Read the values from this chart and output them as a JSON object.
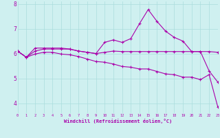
{
  "xlabel": "Windchill (Refroidissement éolien,°C)",
  "background_color": "#cff0f0",
  "line_color": "#aa00aa",
  "grid_color": "#aadddd",
  "x_hours": [
    0,
    1,
    2,
    3,
    4,
    5,
    6,
    7,
    8,
    9,
    10,
    11,
    12,
    13,
    14,
    15,
    16,
    17,
    18,
    19,
    20,
    21,
    22,
    23
  ],
  "series1": [
    6.1,
    5.85,
    6.22,
    6.22,
    6.22,
    6.22,
    6.18,
    6.1,
    6.05,
    6.0,
    6.45,
    6.55,
    6.45,
    6.6,
    7.2,
    7.77,
    7.3,
    6.9,
    6.65,
    6.5,
    6.08,
    6.08,
    5.3,
    4.85
  ],
  "series2": [
    6.1,
    5.85,
    6.1,
    6.18,
    6.18,
    6.18,
    6.18,
    6.1,
    6.05,
    6.0,
    6.05,
    6.1,
    6.08,
    6.08,
    6.08,
    6.08,
    6.08,
    6.08,
    6.08,
    6.08,
    6.08,
    6.08,
    6.08,
    6.05
  ],
  "series3": [
    6.1,
    5.85,
    5.98,
    6.05,
    6.05,
    5.98,
    5.95,
    5.88,
    5.78,
    5.68,
    5.65,
    5.58,
    5.48,
    5.45,
    5.38,
    5.38,
    5.28,
    5.18,
    5.15,
    5.05,
    5.05,
    4.95,
    5.15,
    3.85
  ],
  "xlim": [
    0,
    23
  ],
  "ylim": [
    3.6,
    8.1
  ],
  "yticks": [
    4,
    5,
    6,
    7,
    8
  ],
  "xticks": [
    0,
    1,
    2,
    3,
    4,
    5,
    6,
    7,
    8,
    9,
    10,
    11,
    12,
    13,
    14,
    15,
    16,
    17,
    18,
    19,
    20,
    21,
    22,
    23
  ],
  "marker": "+",
  "marker_size": 2.5,
  "linewidth": 0.8
}
